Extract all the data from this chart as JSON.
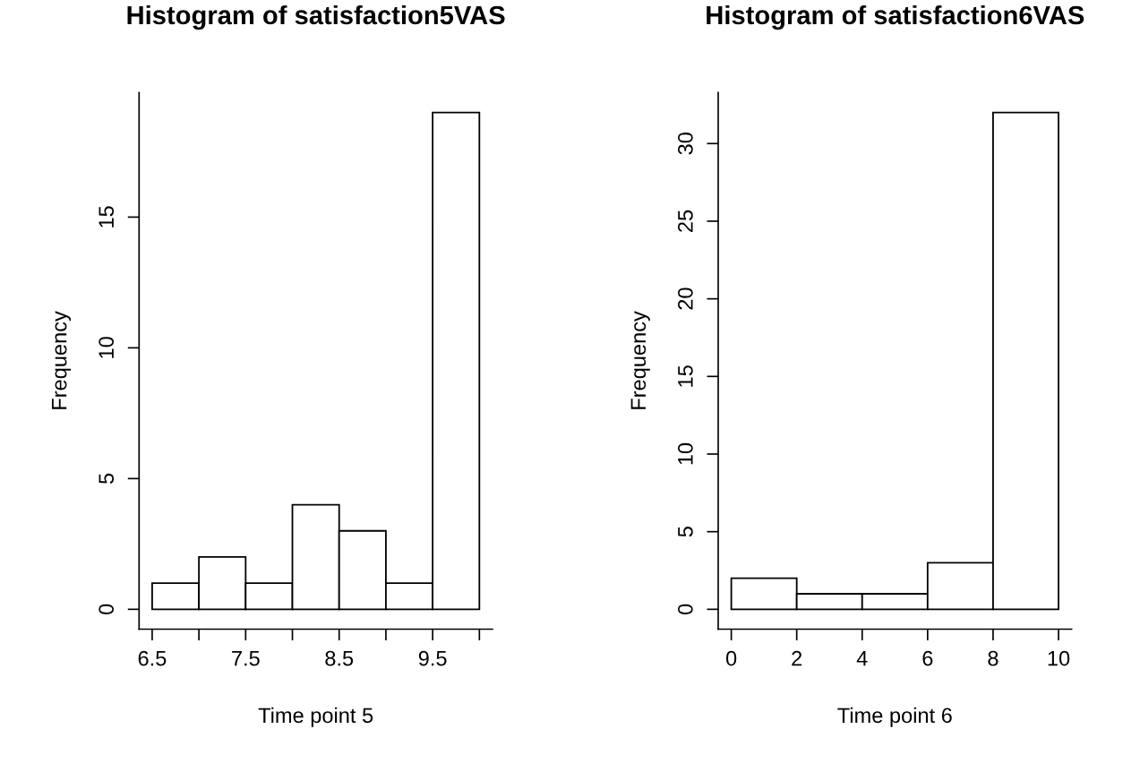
{
  "chart_data": [
    {
      "type": "histogram",
      "title": "Histogram of satisfaction5VAS",
      "xlabel": "Time point 5",
      "ylabel": "Frequency",
      "color": "#ffffff",
      "bins": [
        6.5,
        7,
        7.5,
        8,
        8.5,
        9,
        9.5,
        10
      ],
      "values": [
        1,
        2,
        1,
        4,
        3,
        1,
        19
      ],
      "xlim": [
        6.36,
        10.14
      ],
      "ylim": [
        -0.76,
        19.76
      ],
      "xticks": [
        6.5,
        {
          "value": 7,
          "label": null
        },
        7.5,
        {
          "value": 8,
          "label": null
        },
        8.5,
        {
          "value": 9,
          "label": null
        },
        9.5,
        {
          "value": 10,
          "label": null
        }
      ],
      "yticks": [
        0,
        5,
        10,
        15
      ],
      "grid": false
    },
    {
      "type": "histogram",
      "title": "Histogram of satisfaction6VAS",
      "xlabel": "Time point 6",
      "ylabel": "Frequency",
      "color": "#ffffff",
      "bins": [
        0,
        2,
        4,
        6,
        8,
        10
      ],
      "values": [
        2,
        1,
        1,
        3,
        32
      ],
      "xlim": [
        -0.4,
        10.4
      ],
      "ylim": [
        -1.28,
        33.28
      ],
      "xticks": [
        0,
        2,
        4,
        6,
        8,
        10
      ],
      "yticks": [
        0,
        5,
        10,
        15,
        20,
        25,
        30
      ],
      "grid": false
    }
  ]
}
